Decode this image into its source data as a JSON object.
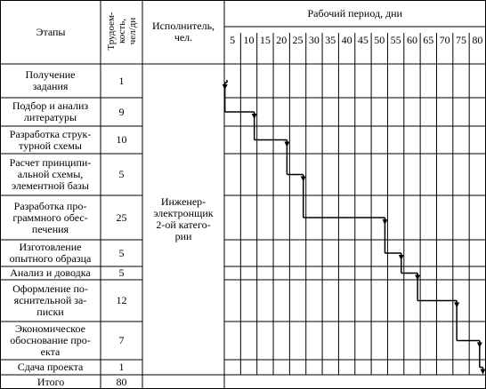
{
  "header": {
    "stage": "Этапы",
    "labor": "Трудоем-\nкость,\nчел/дн",
    "executor": "Исполнитель,\nчел.",
    "period": "Рабочий период, дни",
    "days": [
      5,
      10,
      15,
      20,
      25,
      30,
      35,
      40,
      45,
      50,
      55,
      60,
      65,
      70,
      75,
      80
    ]
  },
  "table": {
    "rows": [
      {
        "stage": "Получение\nзадания",
        "duration": 1
      },
      {
        "stage": "Подбор и анализ\nлитературы",
        "duration": 9
      },
      {
        "stage": "Разработка струк-\nтурной схемы",
        "duration": 10
      },
      {
        "stage": "Расчет принципи-\nальной схемы,\nэлементной базы",
        "duration": 5
      },
      {
        "stage": "Разработка про-\nграммного обес-\nпечения",
        "duration": 25
      },
      {
        "stage": "Изготовление\nопытного образца",
        "duration": 5
      },
      {
        "stage": "Анализ и доводка",
        "duration": 5
      },
      {
        "stage": "Оформление по-\nяснительной за-\nписки",
        "duration": 12
      },
      {
        "stage": "Экономическое\nобоснование про-\nекта",
        "duration": 7
      },
      {
        "stage": "Сдача проекта",
        "duration": 1
      }
    ],
    "executor": "Инженер-\nэлектронщик\n2-ой катего-\nрии",
    "total": {
      "label": "Итого",
      "value": 80
    }
  }
}
